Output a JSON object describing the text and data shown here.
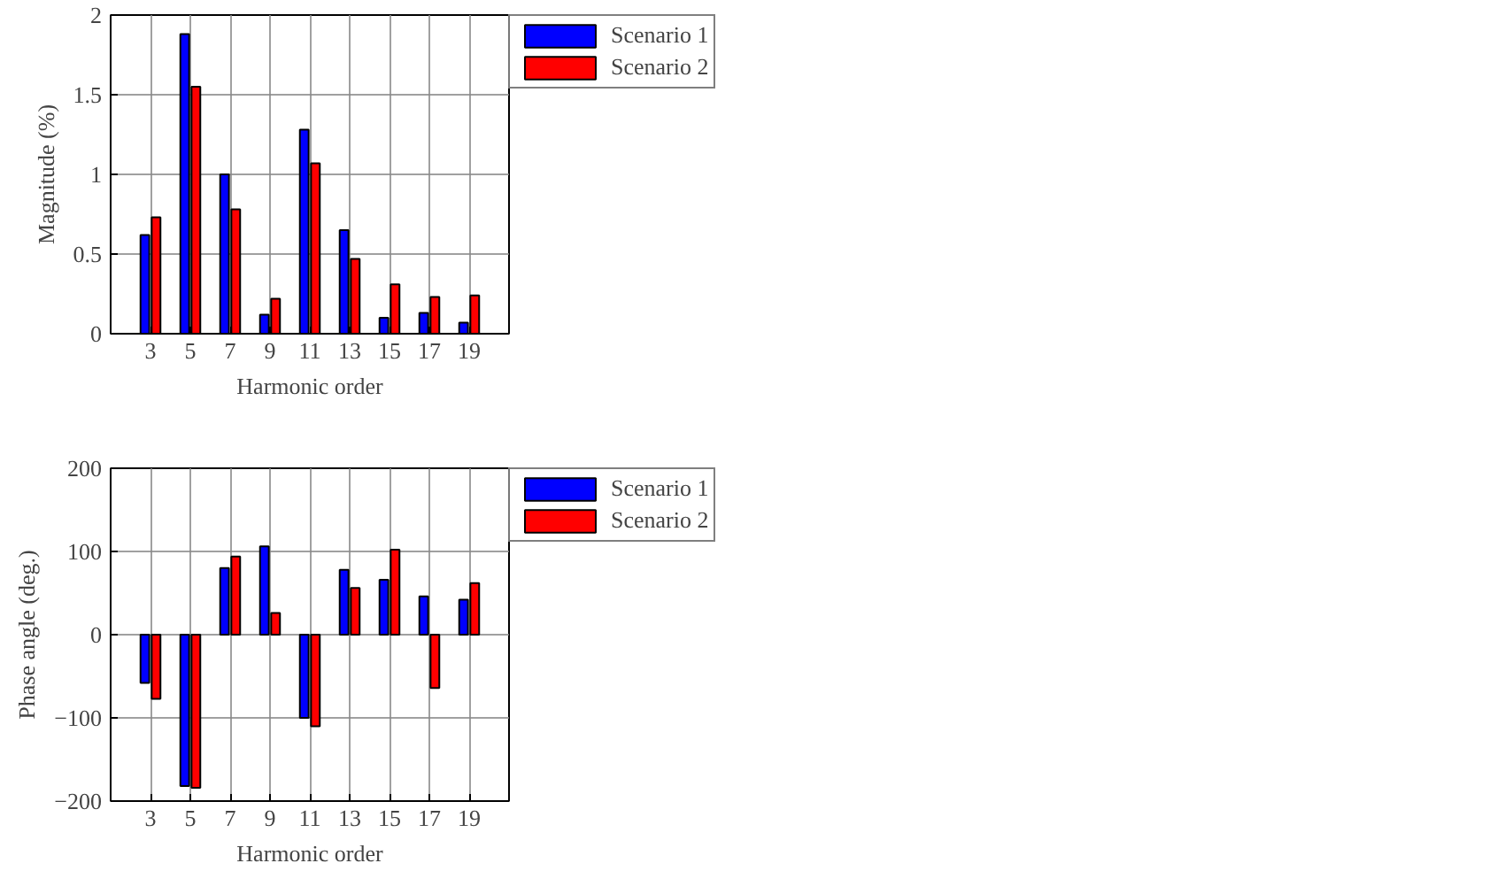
{
  "chart_data": [
    {
      "type": "bar",
      "xlabel": "Harmonic order",
      "ylabel": "Magnitude (%)",
      "categories": [
        "3",
        "5",
        "7",
        "9",
        "11",
        "13",
        "15",
        "17",
        "19"
      ],
      "series": [
        {
          "name": "Scenario 1",
          "color": "#0000ff",
          "values": [
            0.62,
            1.88,
            1.0,
            0.12,
            1.28,
            0.65,
            0.1,
            0.13,
            0.07
          ]
        },
        {
          "name": "Scenario 2",
          "color": "#ff0000",
          "values": [
            0.73,
            1.55,
            0.78,
            0.22,
            1.07,
            0.47,
            0.31,
            0.23,
            0.24
          ]
        }
      ],
      "ylim": [
        0,
        2
      ],
      "yticks": [
        0,
        0.5,
        1,
        1.5,
        2
      ],
      "grid": true,
      "legend": "right"
    },
    {
      "type": "bar",
      "xlabel": "Harmonic order",
      "ylabel": "Phase angle (deg.)",
      "categories": [
        "3",
        "5",
        "7",
        "9",
        "11",
        "13",
        "15",
        "17",
        "19"
      ],
      "series": [
        {
          "name": "Scenario 1",
          "color": "#0000ff",
          "values": [
            -58,
            -182,
            80,
            106,
            -100,
            78,
            66,
            46,
            42
          ]
        },
        {
          "name": "Scenario 2",
          "color": "#ff0000",
          "values": [
            -77,
            -184,
            94,
            26,
            -110,
            56,
            102,
            -64,
            62
          ]
        }
      ],
      "ylim": [
        -200,
        200
      ],
      "yticks": [
        -200,
        -100,
        0,
        100,
        200
      ],
      "grid": true,
      "legend": "right"
    }
  ]
}
